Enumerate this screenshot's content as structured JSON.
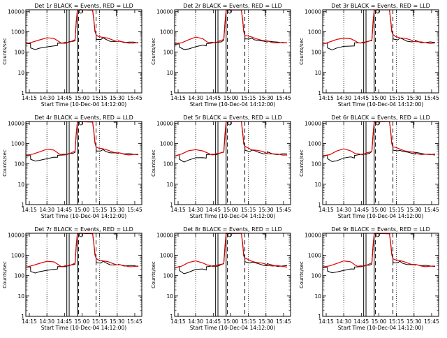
{
  "chart_data": [
    {
      "type": "line",
      "title": "Det 1r BLACK = Events, RED = LLD",
      "xlabel": "Start Time (10-Dec-04 14:12:00)",
      "ylabel": "Counts/sec",
      "variant": 0
    },
    {
      "type": "line",
      "title": "Det 2r BLACK = Events, RED = LLD",
      "xlabel": "Start Time (10-Dec-04 14:12:00)",
      "ylabel": "Counts/sec",
      "variant": 1
    },
    {
      "type": "line",
      "title": "Det 3r BLACK = Events, RED = LLD",
      "xlabel": "Start Time (10-Dec-04 14:12:00)",
      "ylabel": "Counts/sec",
      "variant": 2
    },
    {
      "type": "line",
      "title": "Det 4r BLACK = Events, RED = LLD",
      "xlabel": "Start Time (10-Dec-04 14:12:00)",
      "ylabel": "Counts/sec",
      "variant": 3
    },
    {
      "type": "line",
      "title": "Det 5r BLACK = Events, RED = LLD",
      "xlabel": "Start Time (10-Dec-04 14:12:00)",
      "ylabel": "Counts/sec",
      "variant": 4
    },
    {
      "type": "line",
      "title": "Det 6r BLACK = Events, RED = LLD",
      "xlabel": "Start Time (10-Dec-04 14:12:00)",
      "ylabel": "Counts/sec",
      "variant": 5
    },
    {
      "type": "line",
      "title": "Det 7r BLACK = Events, RED = LLD",
      "xlabel": "Start Time (10-Dec-04 14:12:00)",
      "ylabel": "Counts/sec",
      "variant": 6
    },
    {
      "type": "line",
      "title": "Det 8r BLACK = Events, RED = LLD",
      "xlabel": "Start Time (10-Dec-04 14:12:00)",
      "ylabel": "Counts/sec",
      "variant": 7
    },
    {
      "type": "line",
      "title": "Det 9r BLACK = Events, RED = LLD",
      "xlabel": "Start Time (10-Dec-04 14:12:00)",
      "ylabel": "Counts/sec",
      "variant": 8
    }
  ],
  "shared": {
    "x_unit": "minutes since 14:12:00",
    "xlim": [
      0,
      99
    ],
    "ylim": [
      1,
      12000
    ],
    "yscale": "log",
    "x_ticks": [
      {
        "v": 3,
        "label": "14:15"
      },
      {
        "v": 18,
        "label": "14:30"
      },
      {
        "v": 33,
        "label": "14:45"
      },
      {
        "v": 48,
        "label": "15:00"
      },
      {
        "v": 63,
        "label": "15:15"
      },
      {
        "v": 78,
        "label": "15:30"
      },
      {
        "v": 93,
        "label": "15:45"
      }
    ],
    "y_ticks": [
      {
        "v": 1,
        "label": "1"
      },
      {
        "v": 10,
        "label": "10"
      },
      {
        "v": 100,
        "label": "100"
      },
      {
        "v": 1000,
        "label": "1000"
      },
      {
        "v": 10000,
        "label": "10000"
      }
    ],
    "dotted_lines_x": [
      18,
      63,
      78
    ],
    "dashed_lines_x": [
      45,
      60
    ],
    "solid_lines_x": [
      35,
      37,
      44
    ],
    "red_series_color": "#e00000",
    "black_series_color": "#000000",
    "red_series": {
      "x": [
        0,
        6,
        12,
        18,
        24,
        28,
        30,
        32,
        34,
        35,
        37,
        42,
        43,
        44,
        45,
        46,
        47,
        57,
        58,
        59,
        60,
        62,
        66,
        70,
        75,
        78,
        80,
        84,
        88,
        92,
        96
      ],
      "y": [
        250,
        300,
        420,
        520,
        450,
        330,
        300,
        290,
        290,
        300,
        320,
        400,
        3000,
        12000,
        12000,
        12000,
        12000,
        12000,
        4000,
        1200,
        700,
        620,
        520,
        460,
        390,
        350,
        330,
        300,
        290,
        285,
        280
      ]
    },
    "black_series": {
      "x": [
        0,
        4,
        4.1,
        8,
        12,
        18,
        24,
        27,
        27.1,
        34,
        35,
        37,
        40,
        42,
        43,
        44,
        57,
        58,
        59,
        60,
        60.1,
        64,
        66,
        68,
        72,
        76,
        79,
        79.1,
        84,
        88,
        92,
        96
      ],
      "y": [
        240,
        270,
        170,
        130,
        150,
        190,
        210,
        200,
        270,
        290,
        290,
        310,
        340,
        380,
        2500,
        12000,
        12000,
        4000,
        1000,
        700,
        450,
        420,
        480,
        430,
        360,
        330,
        320,
        370,
        310,
        300,
        300,
        295
      ]
    },
    "marker": {
      "x": 47,
      "y": 10000
    },
    "bracket": {
      "x": 75,
      "y": 11000
    }
  }
}
